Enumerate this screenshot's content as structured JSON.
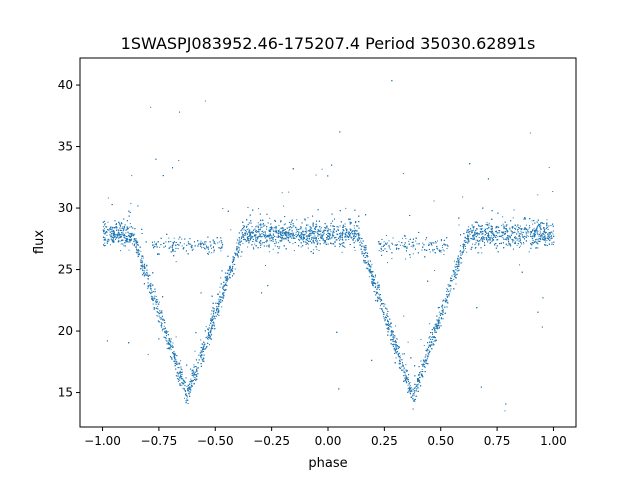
{
  "chart_data": {
    "type": "scatter",
    "title": "1SWASPJ083952.46-175207.4 Period 35030.62891s",
    "xlabel": "phase",
    "ylabel": "flux",
    "xlim": [
      -1.1,
      1.1
    ],
    "ylim": [
      12.2,
      42.2
    ],
    "xticks": [
      -1.0,
      -0.75,
      -0.5,
      -0.25,
      0.0,
      0.25,
      0.5,
      0.75,
      1.0
    ],
    "xtick_labels": [
      "−1.00",
      "−0.75",
      "−0.50",
      "−0.25",
      "0.00",
      "0.25",
      "0.50",
      "0.75",
      "1.00"
    ],
    "yticks": [
      15,
      20,
      25,
      30,
      35,
      40
    ],
    "ytick_labels": [
      "15",
      "20",
      "25",
      "30",
      "35",
      "40"
    ],
    "grid": false,
    "marker_color": "#1f77b4",
    "light_curve": {
      "baseline_flux": 27.9,
      "baseline_scatter": 0.5,
      "primary_eclipses": [
        {
          "phase_center": -0.625,
          "min_flux": 14.7,
          "half_width": 0.245
        },
        {
          "phase_center": 0.375,
          "min_flux": 14.7,
          "half_width": 0.245
        }
      ],
      "secondary_eclipses": [
        {
          "phase_center": -0.625,
          "min_flux": 27.0,
          "half_width": 0.26
        },
        {
          "phase_center": 0.375,
          "min_flux": 27.0,
          "half_width": 0.26
        }
      ],
      "outlier_flux_range": [
        13.5,
        40.6
      ],
      "phase_range": [
        -1.0,
        1.0
      ]
    }
  }
}
